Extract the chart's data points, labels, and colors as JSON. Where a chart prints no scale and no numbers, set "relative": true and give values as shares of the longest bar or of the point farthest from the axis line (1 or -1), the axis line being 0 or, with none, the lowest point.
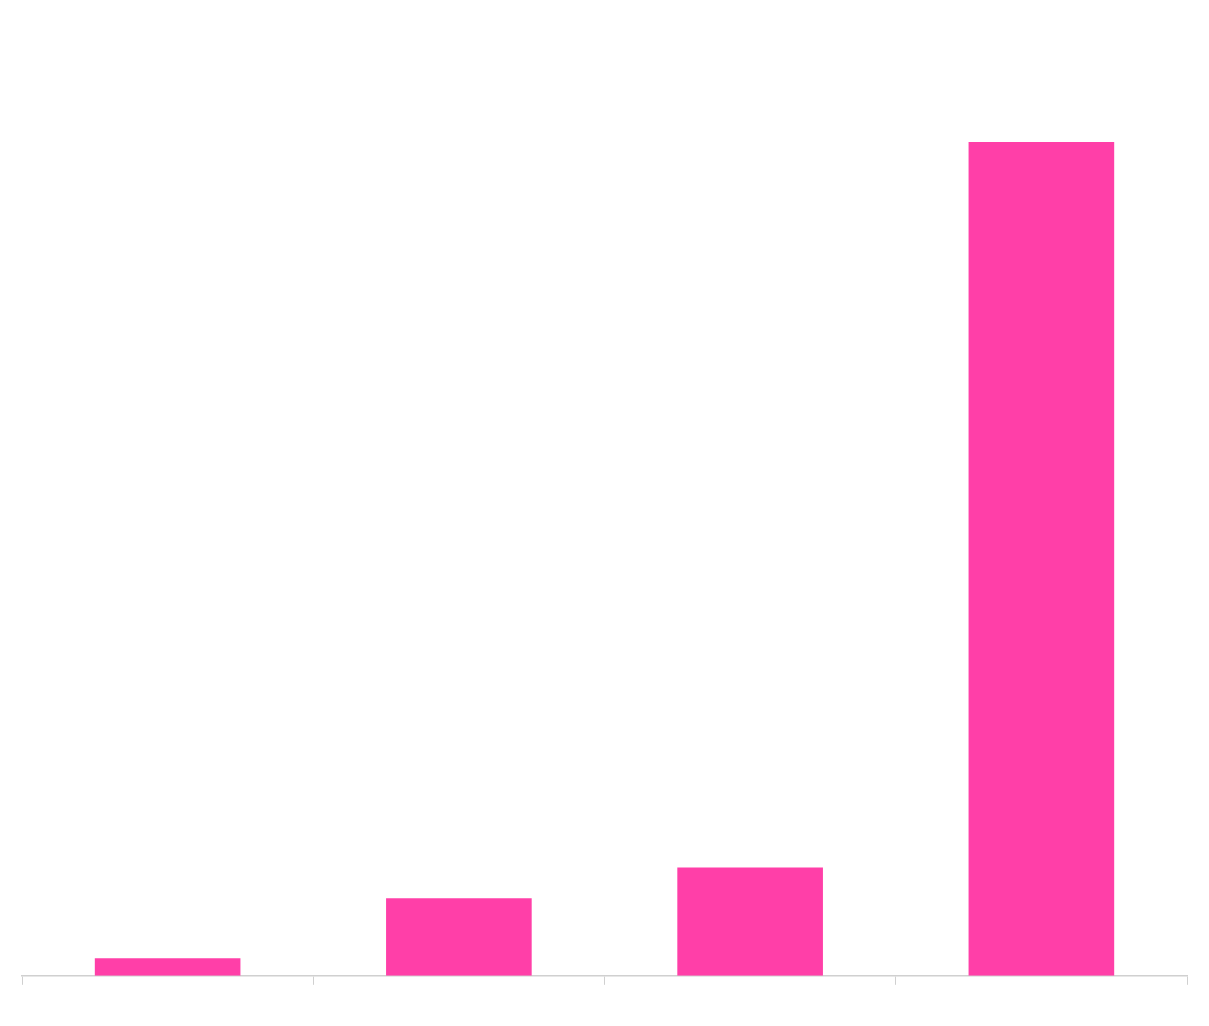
{
  "chart_data": {
    "type": "bar",
    "relative": true,
    "categories": [
      null,
      null,
      null,
      null
    ],
    "values": [
      0.021,
      0.093,
      0.13,
      1
    ],
    "color": "#ff3fa8",
    "legend": false
  }
}
